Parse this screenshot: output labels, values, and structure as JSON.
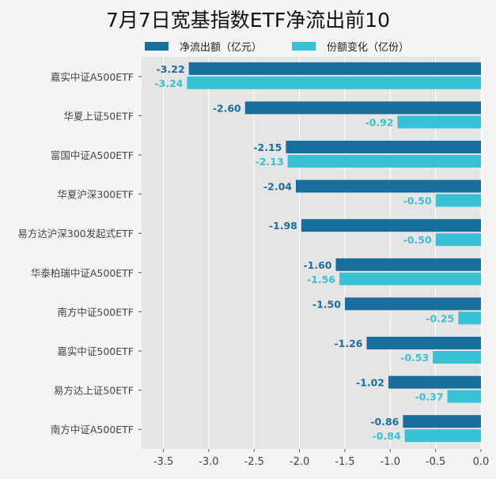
{
  "chart_data": {
    "type": "bar",
    "orientation": "horizontal",
    "title": "7月7日宽基指数ETF净流出前10",
    "categories": [
      "嘉实中证A500ETF",
      "华夏上证50ETF",
      "富国中证A500ETF",
      "华夏沪深300ETF",
      "易方达沪深300发起式ETF",
      "华泰柏瑞中证A500ETF",
      "南方中证500ETF",
      "嘉实中证500ETF",
      "易方达上证50ETF",
      "南方中证A500ETF"
    ],
    "series": [
      {
        "name": "净流出额（亿元）",
        "color": "#1a6e9e",
        "values": [
          -3.22,
          -2.6,
          -2.15,
          -2.04,
          -1.98,
          -1.6,
          -1.5,
          -1.26,
          -1.02,
          -0.86
        ],
        "labels": [
          "-3.22",
          "-2.60",
          "-2.15",
          "-2.04",
          "-1.98",
          "-1.60",
          "-1.50",
          "-1.26",
          "-1.02",
          "-0.86"
        ]
      },
      {
        "name": "份额变化（亿份）",
        "color": "#38c0d4",
        "values": [
          -3.24,
          -0.92,
          -2.13,
          -0.5,
          -0.5,
          -1.56,
          -0.25,
          -0.53,
          -0.37,
          -0.84
        ],
        "labels": [
          "-3.24",
          "-0.92",
          "-2.13",
          "-0.50",
          "-0.50",
          "-1.56",
          "-0.25",
          "-0.53",
          "-0.37",
          "-0.84"
        ]
      }
    ],
    "xlim": [
      -3.74,
      0
    ],
    "xticks": [
      -3.5,
      -3.0,
      -2.5,
      -2.0,
      -1.5,
      -1.0,
      -0.5,
      0.0
    ],
    "xtick_labels": [
      "-3.5",
      "-3.0",
      "-2.5",
      "-2.0",
      "-1.5",
      "-1.0",
      "-0.5",
      "0.0"
    ],
    "grid": true,
    "legend": "top"
  }
}
